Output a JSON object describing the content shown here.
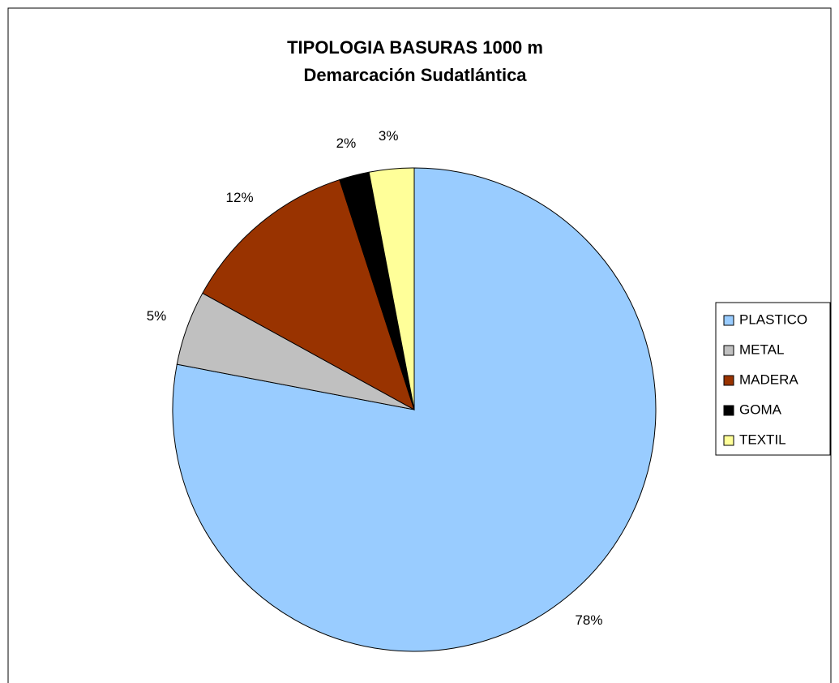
{
  "chart_data": {
    "type": "pie",
    "title": "TIPOLOGIA BASURAS 1000 m",
    "subtitle": "Demarcación Sudatlántica",
    "categories": [
      "PLASTICO",
      "METAL",
      "MADERA",
      "GOMA",
      "TEXTIL"
    ],
    "values": [
      78,
      5,
      12,
      2,
      3
    ],
    "value_labels": [
      "78%",
      "5%",
      "12%",
      "2%",
      "3%"
    ],
    "colors": [
      "#99ccff",
      "#c0c0c0",
      "#993300",
      "#000000",
      "#ffff99"
    ],
    "legend": "right"
  }
}
